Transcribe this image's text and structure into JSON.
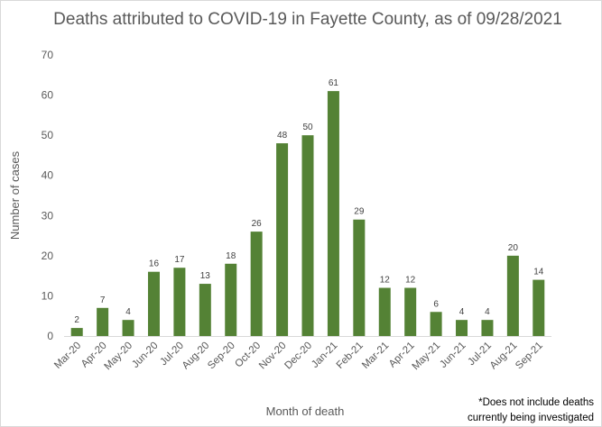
{
  "chart_data": {
    "type": "bar",
    "title": "Deaths attributed to COVID-19 in Fayette County, as of 09/28/2021",
    "xlabel": "Month of death",
    "ylabel": "Number of cases",
    "categories": [
      "Mar-20",
      "Apr-20",
      "May-20",
      "Jun-20",
      "Jul-20",
      "Aug-20",
      "Sep-20",
      "Oct-20",
      "Nov-20",
      "Dec-20",
      "Jan-21",
      "Feb-21",
      "Mar-21",
      "Apr-21",
      "May-21",
      "Jun-21",
      "Jul-21",
      "Aug-21",
      "Sep-21"
    ],
    "values": [
      2,
      7,
      4,
      16,
      17,
      13,
      18,
      26,
      48,
      50,
      61,
      29,
      12,
      12,
      6,
      4,
      4,
      20,
      14
    ],
    "ylim": [
      0,
      70
    ],
    "yticks": [
      0,
      10,
      20,
      30,
      40,
      50,
      60,
      70
    ],
    "bar_color": "#548235",
    "grid": false,
    "legend": "none"
  },
  "footnote": {
    "line1": "*Does not include deaths",
    "line2": "currently being investigated"
  }
}
